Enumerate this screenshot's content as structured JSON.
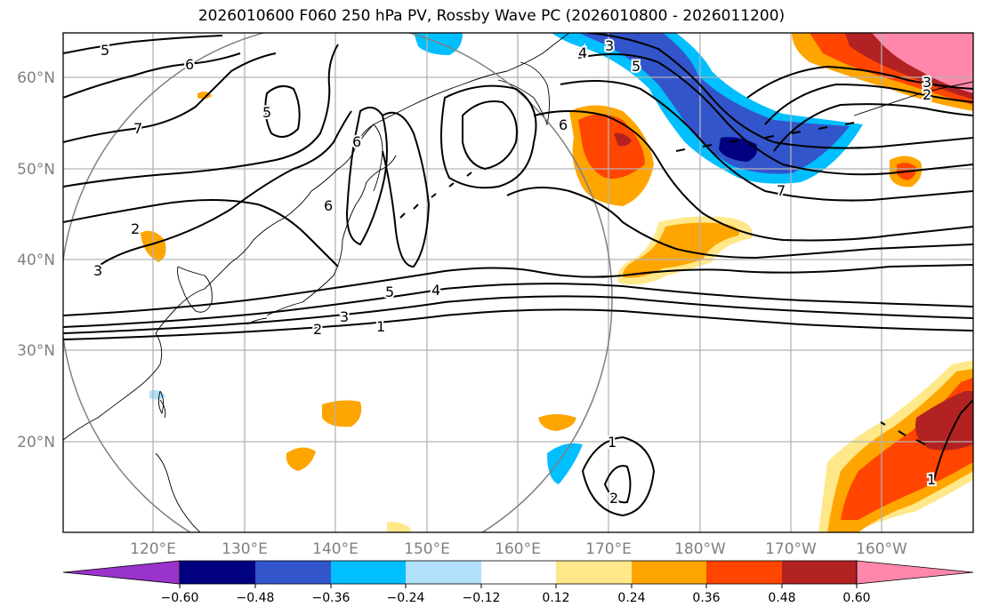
{
  "title": "2026010600 F060 250 hPa PV, Rossby Wave PC (2026010800 - 2026011200)",
  "lon_ticks": [
    "120°E",
    "130°E",
    "140°E",
    "150°E",
    "160°E",
    "170°E",
    "180°W",
    "170°W",
    "160°W"
  ],
  "lat_ticks": [
    "60°N",
    "50°N",
    "40°N",
    "30°N",
    "20°N"
  ],
  "colorbar": {
    "ticks": [
      "−0.60",
      "−0.48",
      "−0.36",
      "−0.24",
      "−0.12",
      "0.12",
      "0.24",
      "0.36",
      "0.48",
      "0.60"
    ],
    "colors": [
      "#9933cc",
      "#000080",
      "#3355cc",
      "#00bfff",
      "#b0e0fa",
      "#ffffff",
      "#ffe88a",
      "#ffa500",
      "#ff4500",
      "#b22222",
      "#ff88aa"
    ]
  },
  "pv_contour_labels": [
    "5",
    "6",
    "7",
    "2",
    "3",
    "5",
    "6",
    "6",
    "4",
    "3",
    "5",
    "6",
    "7",
    "3",
    "2",
    "5",
    "4",
    "2",
    "3",
    "1",
    "1",
    "2",
    "1"
  ]
}
